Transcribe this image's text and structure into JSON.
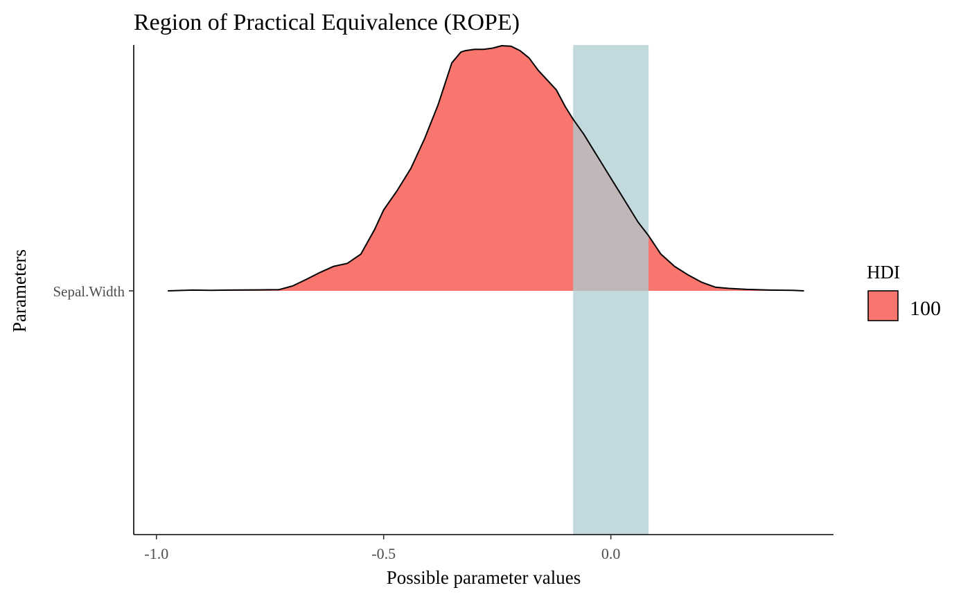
{
  "chart_data": {
    "type": "area",
    "title": "Region of Practical Equivalence (ROPE)",
    "xlabel": "Possible parameter values",
    "ylabel": "Parameters",
    "xlim": [
      -1.05,
      0.49
    ],
    "xticks": [
      {
        "value": -1.0,
        "label": "-1.0"
      },
      {
        "value": -0.5,
        "label": "-0.5"
      },
      {
        "value": 0.0,
        "label": "0.0"
      }
    ],
    "parameters": [
      "Sepal.Width"
    ],
    "rope": [
      -0.083,
      0.083
    ],
    "rope_color": "#AECDD1",
    "fill_color": "#F8766D",
    "legend": {
      "title": "HDI",
      "entries": [
        {
          "label": "100",
          "color": "#F8766D"
        }
      ],
      "position": "right"
    },
    "grid": false,
    "series": [
      {
        "parameter": "Sepal.Width",
        "x": [
          -0.975,
          -0.92,
          -0.88,
          -0.84,
          -0.78,
          -0.73,
          -0.7,
          -0.67,
          -0.64,
          -0.61,
          -0.58,
          -0.55,
          -0.52,
          -0.5,
          -0.47,
          -0.44,
          -0.41,
          -0.38,
          -0.35,
          -0.33,
          -0.32,
          -0.3,
          -0.28,
          -0.26,
          -0.24,
          -0.22,
          -0.2,
          -0.18,
          -0.16,
          -0.14,
          -0.12,
          -0.1,
          -0.083,
          -0.06,
          -0.04,
          -0.02,
          0.0,
          0.02,
          0.04,
          0.06,
          0.083,
          0.11,
          0.14,
          0.17,
          0.2,
          0.23,
          0.26,
          0.3,
          0.35,
          0.4,
          0.425
        ],
        "density": [
          0.0,
          0.003,
          0.002,
          0.003,
          0.004,
          0.005,
          0.02,
          0.047,
          0.075,
          0.1,
          0.112,
          0.15,
          0.25,
          0.33,
          0.41,
          0.5,
          0.62,
          0.76,
          0.93,
          0.974,
          0.98,
          0.985,
          0.985,
          0.99,
          1.0,
          0.998,
          0.98,
          0.95,
          0.9,
          0.86,
          0.82,
          0.75,
          0.7,
          0.64,
          0.58,
          0.52,
          0.46,
          0.4,
          0.34,
          0.28,
          0.225,
          0.15,
          0.1,
          0.065,
          0.035,
          0.015,
          0.01,
          0.006,
          0.003,
          0.002,
          0.0
        ]
      }
    ]
  }
}
